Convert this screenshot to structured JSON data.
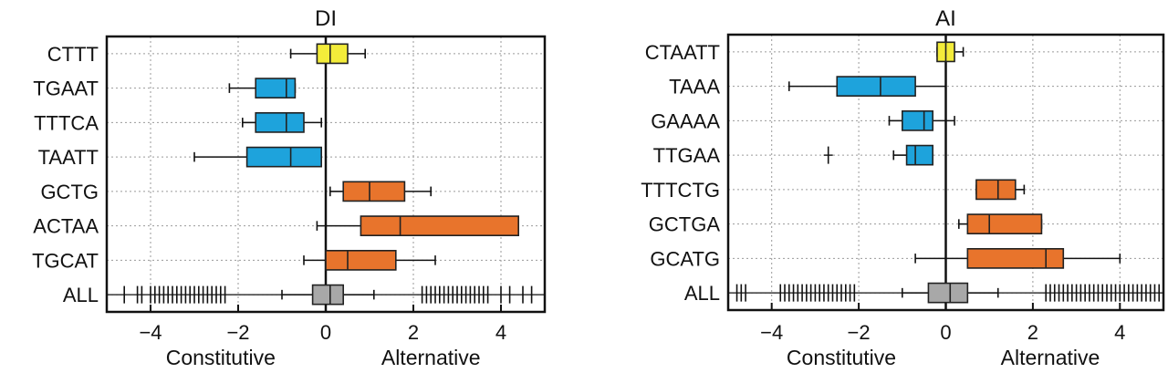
{
  "chart_data": [
    {
      "type": "boxplot",
      "title": "DI",
      "xlim": [
        -5,
        5
      ],
      "xticks": [
        -4,
        -2,
        0,
        2,
        4
      ],
      "xtick_labels": [
        "−4",
        "−2",
        "0",
        "2",
        "4"
      ],
      "xlabel_left": "Constitutive",
      "xlabel_right": "Alternative",
      "grid": true,
      "rows": [
        {
          "label": "CTTT",
          "color": "#f3ec3a",
          "whisker_low": -0.8,
          "q1": -0.2,
          "median": 0.1,
          "q3": 0.5,
          "whisker_high": 0.9
        },
        {
          "label": "TGAAT",
          "color": "#1ea3dc",
          "whisker_low": -2.2,
          "q1": -1.6,
          "median": -0.9,
          "q3": -0.7,
          "whisker_high": -0.7
        },
        {
          "label": "TTTCA",
          "color": "#1ea3dc",
          "whisker_low": -1.9,
          "q1": -1.6,
          "median": -0.9,
          "q3": -0.5,
          "whisker_high": -0.1
        },
        {
          "label": "TAATT",
          "color": "#1ea3dc",
          "whisker_low": -3.0,
          "q1": -1.8,
          "median": -0.8,
          "q3": -0.1,
          "whisker_high": -0.1
        },
        {
          "label": "GCTG",
          "color": "#e8742c",
          "whisker_low": 0.1,
          "q1": 0.4,
          "median": 1.0,
          "q3": 1.8,
          "whisker_high": 2.4
        },
        {
          "label": "ACTAA",
          "color": "#e8742c",
          "whisker_low": -0.2,
          "q1": 0.8,
          "median": 1.7,
          "q3": 4.4,
          "whisker_high": 4.4
        },
        {
          "label": "TGCAT",
          "color": "#e8742c",
          "whisker_low": -0.5,
          "q1": 0.0,
          "median": 0.5,
          "q3": 1.6,
          "whisker_high": 2.5
        },
        {
          "label": "ALL",
          "color": "#a8a8a8",
          "whisker_low": -1.0,
          "q1": -0.3,
          "median": 0.1,
          "q3": 0.4,
          "whisker_high": 1.1,
          "outliers": [
            -4.6,
            -4.3,
            -4.2,
            -4.0,
            -3.9,
            -3.8,
            -3.7,
            -3.6,
            -3.5,
            -3.4,
            -3.3,
            -3.2,
            -3.1,
            -3.0,
            -2.9,
            -2.8,
            -2.7,
            -2.6,
            -2.5,
            -2.4,
            -2.3,
            2.2,
            2.3,
            2.4,
            2.5,
            2.6,
            2.7,
            2.8,
            2.9,
            3.0,
            3.1,
            3.2,
            3.3,
            3.4,
            3.5,
            3.6,
            3.7,
            4.0,
            4.2,
            4.5,
            4.7
          ]
        }
      ]
    },
    {
      "type": "boxplot",
      "title": "AI",
      "xlim": [
        -5,
        5
      ],
      "xticks": [
        -4,
        -2,
        0,
        2,
        4
      ],
      "xtick_labels": [
        "−4",
        "−2",
        "0",
        "2",
        "4"
      ],
      "xlabel_left": "Constitutive",
      "xlabel_right": "Alternative",
      "grid": true,
      "rows": [
        {
          "label": "CTAATT",
          "color": "#f3ec3a",
          "whisker_low": -0.2,
          "q1": -0.2,
          "median": 0.0,
          "q3": 0.2,
          "whisker_high": 0.4
        },
        {
          "label": "TAAA",
          "color": "#1ea3dc",
          "whisker_low": -3.6,
          "q1": -2.5,
          "median": -1.5,
          "q3": -0.7,
          "whisker_high": 0.0
        },
        {
          "label": "GAAAA",
          "color": "#1ea3dc",
          "whisker_low": -1.3,
          "q1": -1.0,
          "median": -0.5,
          "q3": -0.3,
          "whisker_high": 0.2
        },
        {
          "label": "TTGAA",
          "color": "#1ea3dc",
          "whisker_low": -1.2,
          "q1": -0.9,
          "median": -0.7,
          "q3": -0.3,
          "whisker_high": -0.3,
          "outliers": [
            -2.7
          ]
        },
        {
          "label": "TTTCTG",
          "color": "#e8742c",
          "whisker_low": 0.7,
          "q1": 0.7,
          "median": 1.2,
          "q3": 1.6,
          "whisker_high": 1.8
        },
        {
          "label": "GCTGA",
          "color": "#e8742c",
          "whisker_low": 0.3,
          "q1": 0.5,
          "median": 1.0,
          "q3": 2.2,
          "whisker_high": 2.2
        },
        {
          "label": "GCATG",
          "color": "#e8742c",
          "whisker_low": -0.7,
          "q1": 0.5,
          "median": 2.3,
          "q3": 2.7,
          "whisker_high": 4.0
        },
        {
          "label": "ALL",
          "color": "#a8a8a8",
          "whisker_low": -1.0,
          "q1": -0.4,
          "median": 0.1,
          "q3": 0.5,
          "whisker_high": 1.2,
          "outliers": [
            -4.8,
            -4.7,
            -4.6,
            -3.8,
            -3.7,
            -3.6,
            -3.5,
            -3.4,
            -3.3,
            -3.2,
            -3.1,
            -3.0,
            -2.9,
            -2.8,
            -2.7,
            -2.6,
            -2.5,
            -2.4,
            -2.3,
            -2.2,
            -2.1,
            2.3,
            2.4,
            2.5,
            2.6,
            2.7,
            2.8,
            2.9,
            3.0,
            3.1,
            3.2,
            3.3,
            3.4,
            3.5,
            3.6,
            3.7,
            3.8,
            3.9,
            4.0,
            4.1,
            4.2,
            4.3,
            4.4,
            4.5,
            4.6,
            4.7,
            4.8,
            4.9
          ]
        }
      ]
    }
  ]
}
